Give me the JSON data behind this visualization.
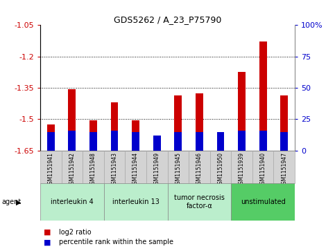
{
  "title": "GDS5262 / A_23_P75790",
  "samples": [
    "GSM1151941",
    "GSM1151942",
    "GSM1151948",
    "GSM1151943",
    "GSM1151944",
    "GSM1151949",
    "GSM1151945",
    "GSM1151946",
    "GSM1151950",
    "GSM1151939",
    "GSM1151940",
    "GSM1151947"
  ],
  "log2_ratio": [
    -1.525,
    -1.355,
    -1.505,
    -1.42,
    -1.505,
    -1.625,
    -1.385,
    -1.375,
    -1.595,
    -1.275,
    -1.13,
    -1.385
  ],
  "percentile": [
    15,
    16,
    15,
    16,
    15,
    12,
    15,
    15,
    15,
    16,
    16,
    15
  ],
  "ymin": -1.65,
  "ymax": -1.05,
  "yticks": [
    -1.65,
    -1.5,
    -1.35,
    -1.2,
    -1.05
  ],
  "ytick_labels": [
    "-1.65",
    "-1.5",
    "-1.35",
    "-1.2",
    "-1.05"
  ],
  "right_yticks_pct": [
    0,
    25,
    50,
    75,
    100
  ],
  "right_ylabels": [
    "0",
    "25",
    "50",
    "75",
    "100%"
  ],
  "agents": [
    {
      "label": "interleukin 4",
      "start": 0,
      "end": 3,
      "color": "#bbeecc"
    },
    {
      "label": "interleukin 13",
      "start": 3,
      "end": 6,
      "color": "#bbeecc"
    },
    {
      "label": "tumor necrosis\nfactor-α",
      "start": 6,
      "end": 9,
      "color": "#bbeecc"
    },
    {
      "label": "unstimulated",
      "start": 9,
      "end": 12,
      "color": "#55cc66"
    }
  ],
  "bar_color": "#cc0000",
  "percentile_color": "#0000cc",
  "bar_width": 0.35,
  "plot_bg": "#ffffff",
  "grid_color": "#000000",
  "left_tick_color": "#cc0000",
  "right_tick_color": "#0000cc",
  "sample_box_color": "#d3d3d3",
  "sample_box_edge": "#aaaaaa"
}
